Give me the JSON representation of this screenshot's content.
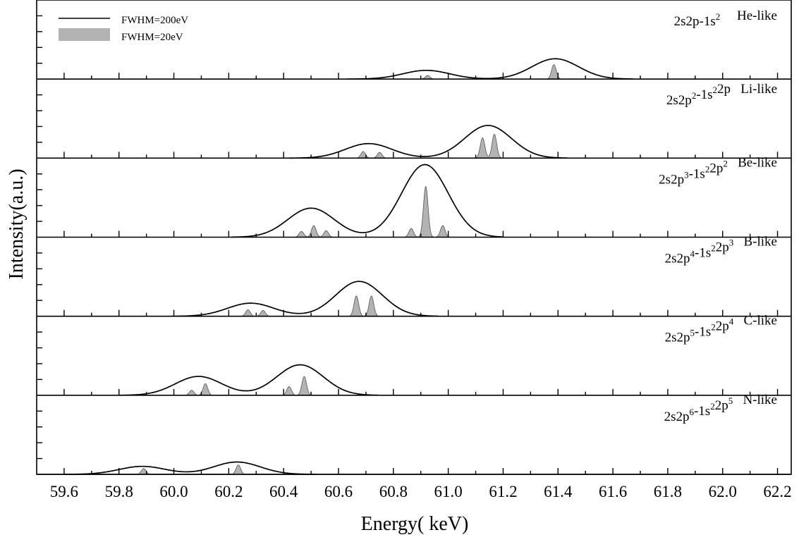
{
  "chart_data": {
    "type": "line",
    "xlabel": "Energy( keV)",
    "ylabel": "Intensity(a.u.)",
    "xlim": [
      59.5,
      62.25
    ],
    "xticks": [
      "59.6",
      "59.8",
      "60.0",
      "60.2",
      "60.4",
      "60.6",
      "60.8",
      "61.0",
      "61.2",
      "61.4",
      "61.6",
      "61.8",
      "62.0",
      "62.2"
    ],
    "legend": {
      "placement": "top-left",
      "entries": [
        {
          "label": "FWHM=200eV",
          "style": "line"
        },
        {
          "label": "FWHM=20eV",
          "style": "filled"
        }
      ]
    },
    "colors": {
      "line": "#000000",
      "fill": "#b3b3b3",
      "fill_stroke": "#555555"
    },
    "panels": [
      {
        "label_parts": [
          [
            "2s2p-1s",
            ""
          ],
          [
            "2",
            "sup"
          ],
          [
            "     He-like",
            ""
          ]
        ],
        "broad": [
          {
            "center": 60.92,
            "amp": 0.12
          },
          {
            "center": 61.39,
            "amp": 0.28
          }
        ],
        "narrow": [
          {
            "center": 60.925,
            "amp": 0.05
          },
          {
            "center": 61.385,
            "amp": 0.2
          }
        ]
      },
      {
        "label_parts": [
          [
            "2s2p",
            ""
          ],
          [
            "2",
            "sup"
          ],
          [
            "-1s",
            ""
          ],
          [
            "2",
            "sup"
          ],
          [
            "2p   Li-like",
            ""
          ]
        ],
        "broad": [
          {
            "center": 60.71,
            "amp": 0.2
          },
          {
            "center": 61.145,
            "amp": 0.45
          }
        ],
        "narrow": [
          {
            "center": 60.69,
            "amp": 0.09
          },
          {
            "center": 60.75,
            "amp": 0.08
          },
          {
            "center": 61.125,
            "amp": 0.28
          },
          {
            "center": 61.168,
            "amp": 0.33
          }
        ]
      },
      {
        "label_parts": [
          [
            "2s2p",
            ""
          ],
          [
            "3",
            "sup"
          ],
          [
            "-1s",
            ""
          ],
          [
            "2",
            "sup"
          ],
          [
            "2p",
            ""
          ],
          [
            "2",
            "sup"
          ],
          [
            "   Be-like",
            ""
          ]
        ],
        "broad": [
          {
            "center": 60.5,
            "amp": 0.4
          },
          {
            "center": 60.915,
            "amp": 1.0
          }
        ],
        "narrow": [
          {
            "center": 60.465,
            "amp": 0.08
          },
          {
            "center": 60.51,
            "amp": 0.16
          },
          {
            "center": 60.555,
            "amp": 0.09
          },
          {
            "center": 60.865,
            "amp": 0.12
          },
          {
            "center": 60.918,
            "amp": 0.7
          },
          {
            "center": 60.98,
            "amp": 0.16
          }
        ]
      },
      {
        "label_parts": [
          [
            "2s2p",
            ""
          ],
          [
            "4",
            "sup"
          ],
          [
            "-1s",
            ""
          ],
          [
            "2",
            "sup"
          ],
          [
            "2p",
            ""
          ],
          [
            "3",
            "sup"
          ],
          [
            "   B-like",
            ""
          ]
        ],
        "broad": [
          {
            "center": 60.28,
            "amp": 0.18
          },
          {
            "center": 60.675,
            "amp": 0.48
          }
        ],
        "narrow": [
          {
            "center": 60.27,
            "amp": 0.09
          },
          {
            "center": 60.325,
            "amp": 0.08
          },
          {
            "center": 60.665,
            "amp": 0.28
          },
          {
            "center": 60.72,
            "amp": 0.28
          }
        ]
      },
      {
        "label_parts": [
          [
            "2s2p",
            ""
          ],
          [
            "5",
            "sup"
          ],
          [
            "-1s",
            ""
          ],
          [
            "2",
            "sup"
          ],
          [
            "2p",
            ""
          ],
          [
            "4",
            "sup"
          ],
          [
            "   C-like",
            ""
          ]
        ],
        "broad": [
          {
            "center": 60.09,
            "amp": 0.26
          },
          {
            "center": 60.46,
            "amp": 0.42
          }
        ],
        "narrow": [
          {
            "center": 60.065,
            "amp": 0.07
          },
          {
            "center": 60.115,
            "amp": 0.16
          },
          {
            "center": 60.42,
            "amp": 0.12
          },
          {
            "center": 60.475,
            "amp": 0.26
          }
        ]
      },
      {
        "label_parts": [
          [
            "2s2p",
            ""
          ],
          [
            "6",
            "sup"
          ],
          [
            "-1s",
            ""
          ],
          [
            "2",
            "sup"
          ],
          [
            "2p",
            ""
          ],
          [
            "5",
            "sup"
          ],
          [
            "   N-like",
            ""
          ]
        ],
        "broad": [
          {
            "center": 59.885,
            "amp": 0.11
          },
          {
            "center": 60.23,
            "amp": 0.17
          }
        ],
        "narrow": [
          {
            "center": 59.89,
            "amp": 0.08
          },
          {
            "center": 60.235,
            "amp": 0.13
          }
        ]
      }
    ]
  }
}
